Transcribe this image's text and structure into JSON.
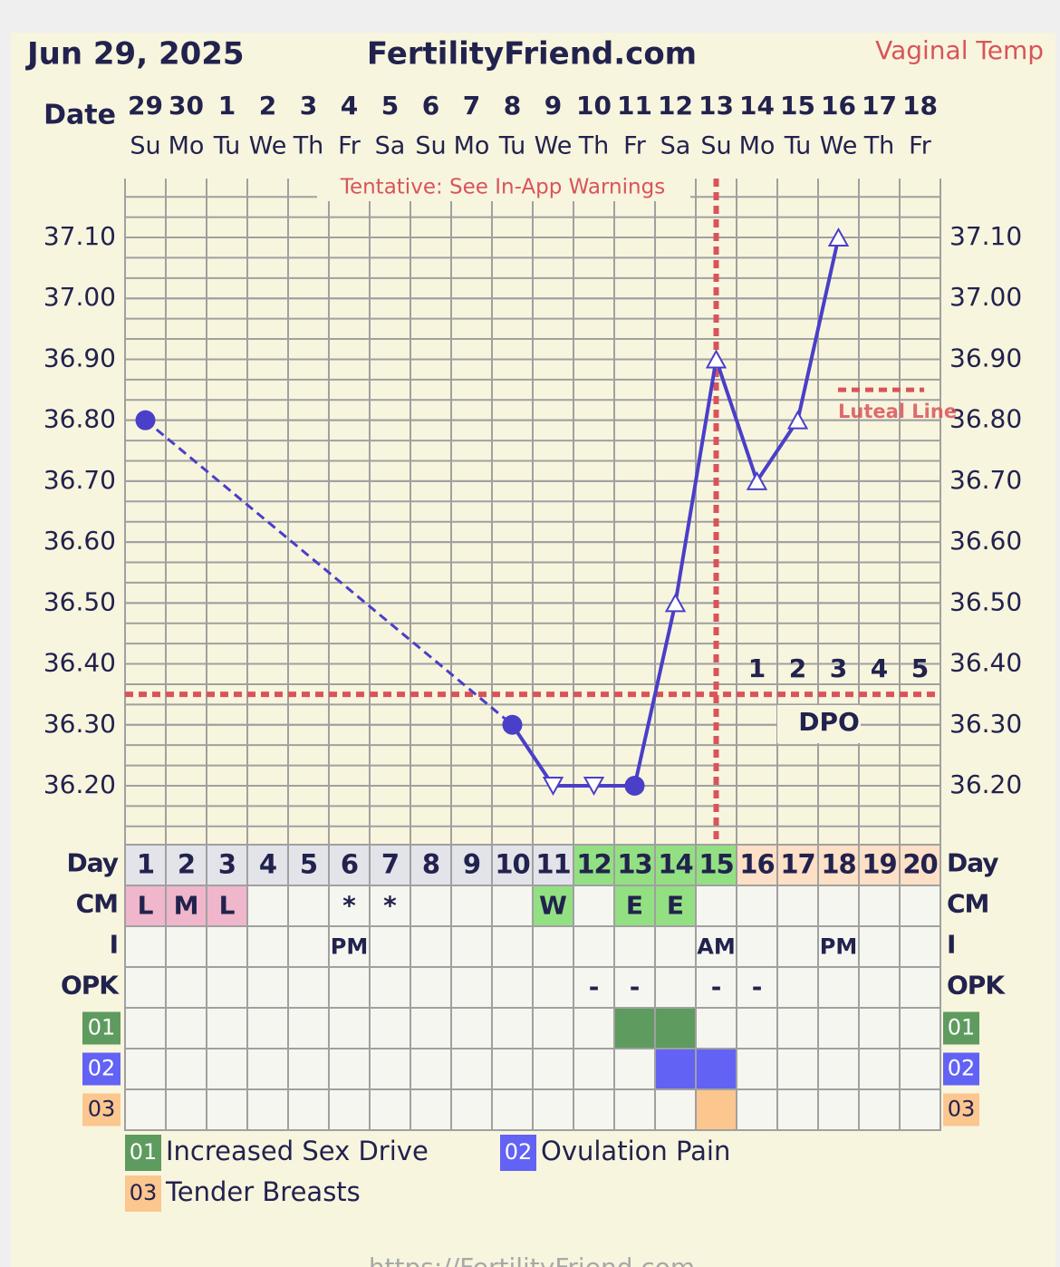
{
  "chart_data": {
    "type": "line",
    "date": "Jun 29, 2025",
    "title": "FertilityFriend.com",
    "temp_label": "Vaginal Temp",
    "warning": "Tentative: See In-App Warnings",
    "date_label": "Date",
    "categories": [
      "29",
      "30",
      "1",
      "2",
      "3",
      "4",
      "5",
      "6",
      "7",
      "8",
      "9",
      "10",
      "11",
      "12",
      "13",
      "14",
      "15",
      "16",
      "17",
      "18"
    ],
    "weekdays": [
      "Su",
      "Mo",
      "Tu",
      "We",
      "Th",
      "Fr",
      "Sa",
      "Su",
      "Mo",
      "Tu",
      "We",
      "Th",
      "Fr",
      "Sa",
      "Su",
      "Mo",
      "Tu",
      "We",
      "Th",
      "Fr"
    ],
    "values": [
      36.8,
      null,
      null,
      null,
      null,
      null,
      null,
      null,
      null,
      36.3,
      36.2,
      36.2,
      36.2,
      36.5,
      36.9,
      36.7,
      36.8,
      37.1,
      null,
      null
    ],
    "markers": [
      "circle",
      null,
      null,
      null,
      null,
      null,
      null,
      null,
      null,
      "circle",
      "down",
      "down",
      "circle",
      "up",
      "up",
      "up",
      "up",
      "up",
      null,
      null
    ],
    "color": "#4a3fc8",
    "ylim": [
      36.1,
      37.2
    ],
    "yticks": [
      {
        "value": 36.2,
        "label": "36.20"
      },
      {
        "value": 36.3,
        "label": "36.30"
      },
      {
        "value": 36.4,
        "label": "36.40"
      },
      {
        "value": 36.5,
        "label": "36.50"
      },
      {
        "value": 36.6,
        "label": "36.60"
      },
      {
        "value": 36.7,
        "label": "36.70"
      },
      {
        "value": 36.8,
        "label": "36.80"
      },
      {
        "value": 36.9,
        "label": "36.90"
      },
      {
        "value": 37.0,
        "label": "37.00"
      },
      {
        "value": 37.1,
        "label": "37.10"
      }
    ],
    "grid": true,
    "coverline": 36.35,
    "line_color": "#d9545a",
    "ovulation_day": 15,
    "luteal_line": {
      "label": "Luteal Line",
      "value": 36.85
    },
    "dpo": {
      "label": "DPO",
      "days": [
        1,
        2,
        3,
        4,
        5
      ]
    },
    "rows": [
      {
        "label": "Day",
        "values": [
          1,
          2,
          3,
          4,
          5,
          6,
          7,
          8,
          9,
          10,
          11,
          12,
          13,
          14,
          15,
          16,
          17,
          18,
          19,
          20
        ],
        "colors": [
          "#e3e3ea",
          "#e3e3ea",
          "#e3e3ea",
          "#e3e3ea",
          "#e3e3ea",
          "#e3e3ea",
          "#e3e3ea",
          "#e3e3ea",
          "#e3e3ea",
          "#e3e3ea",
          "#e3e3ea",
          "#93e083",
          "#93e083",
          "#93e083",
          "#93e083",
          "#fde0c6",
          "#fde0c6",
          "#fde0c6",
          "#fde0c6",
          "#fde0c6"
        ]
      },
      {
        "label": "CM",
        "values": [
          "L",
          "M",
          "L",
          null,
          null,
          "*",
          "*",
          null,
          null,
          null,
          "W",
          null,
          "E",
          "E",
          null,
          null,
          null,
          null,
          null,
          null
        ],
        "colors": [
          "#f0b6cc",
          "#f0b6cc",
          "#f0b6cc",
          null,
          null,
          null,
          null,
          null,
          null,
          null,
          "#93e083",
          null,
          "#93e083",
          "#93e083",
          null,
          null,
          null,
          null,
          null,
          null
        ]
      },
      {
        "label": "I",
        "values": [
          null,
          null,
          null,
          null,
          null,
          "PM",
          null,
          null,
          null,
          null,
          null,
          null,
          null,
          null,
          "AM",
          null,
          null,
          "PM",
          null,
          null
        ]
      },
      {
        "label": "OPK",
        "values": [
          null,
          null,
          null,
          null,
          null,
          null,
          null,
          null,
          null,
          null,
          null,
          "-",
          "-",
          null,
          "-",
          "-",
          null,
          null,
          null,
          null
        ]
      }
    ],
    "symptoms": [
      {
        "code": "01",
        "label": "Increased Sex Drive",
        "color": "#5e9b5e",
        "days": [
          13,
          14
        ]
      },
      {
        "code": "02",
        "label": "Ovulation Pain",
        "color": "#6262f5",
        "days": [
          14,
          15
        ]
      },
      {
        "code": "03",
        "label": "Tender Breasts",
        "color": "#fcc68f",
        "days": [
          15
        ]
      }
    ],
    "footer": "https://FertilityFriend.com"
  }
}
